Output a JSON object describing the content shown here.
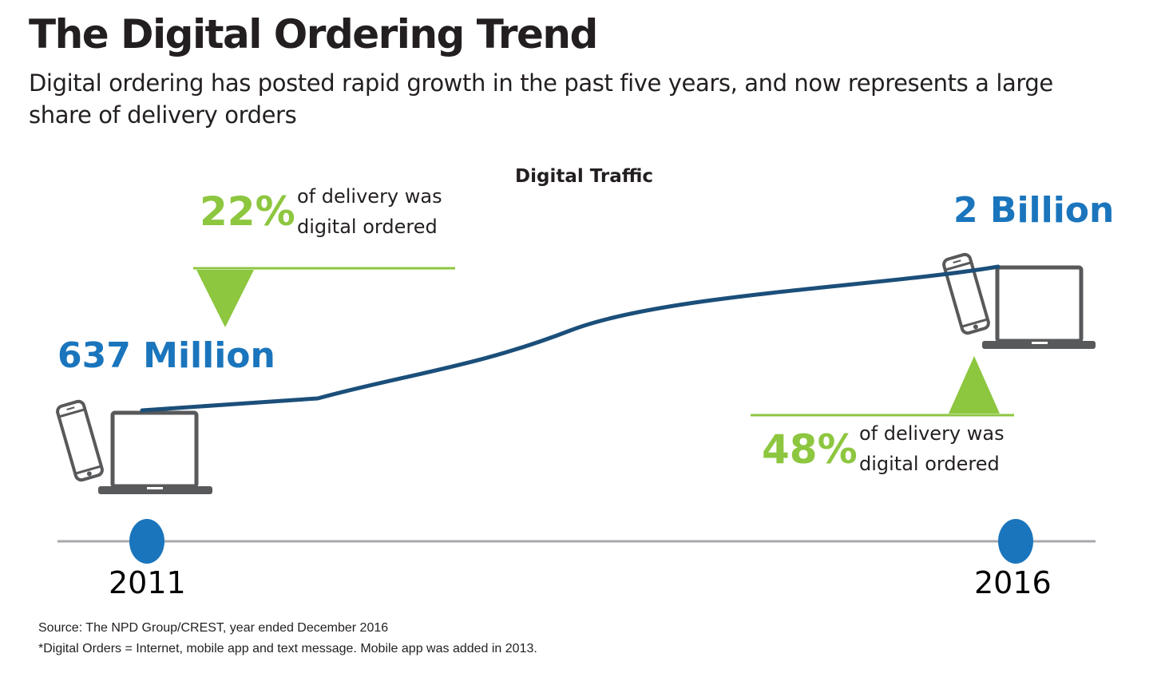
{
  "header": {
    "title": "The Digital Ordering Trend",
    "subtitle": "Digital ordering has posted rapid growth in the past five years, and now represents a large share of delivery orders"
  },
  "chart_data": {
    "type": "line",
    "title": "Digital Traffic",
    "x": [
      2011,
      2016
    ],
    "series": [
      {
        "name": "Digital Traffic",
        "values": [
          637000000,
          2000000000
        ]
      }
    ],
    "value_labels": [
      "637 Million",
      "2 Billion"
    ],
    "xlabels": [
      "2011",
      "2016"
    ],
    "annotations": [
      {
        "year": "2011",
        "value": "22%",
        "text_line1": "of delivery was",
        "text_line2": "digital ordered"
      },
      {
        "year": "2016",
        "value": "48%",
        "text_line1": "of delivery was",
        "text_line2": "digital ordered"
      }
    ]
  },
  "footer": {
    "source": "Source: The NPD Group/CREST, year ended December 2016",
    "note": "*Digital Orders = Internet, mobile app and text message. Mobile app was added in 2013."
  },
  "colors": {
    "line": "#1b4f7a",
    "accent_green": "#8dc63f",
    "accent_blue": "#1a75bc",
    "axis": "#a7a9ac",
    "device": "#58595b"
  }
}
